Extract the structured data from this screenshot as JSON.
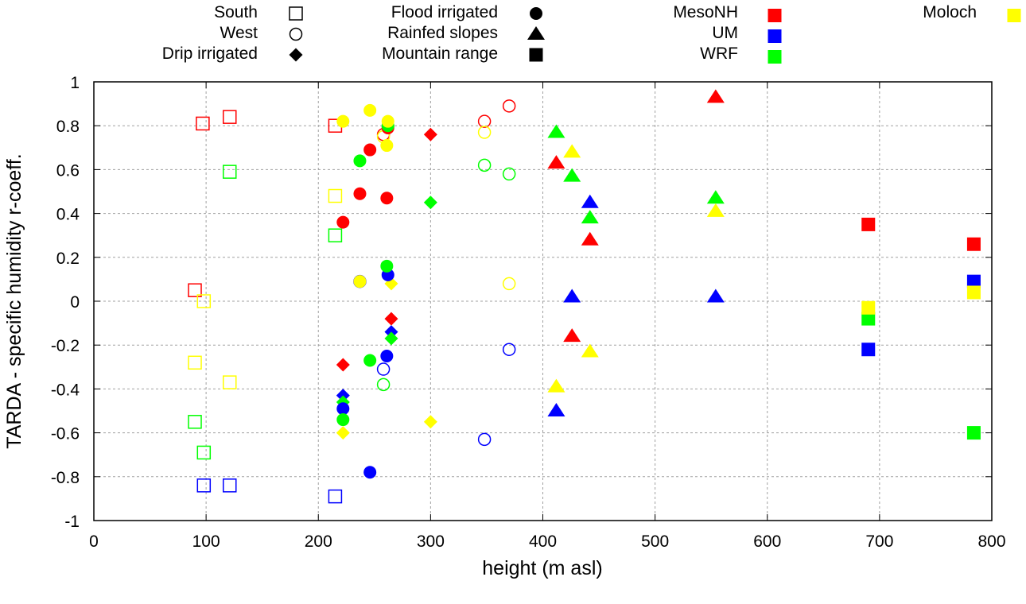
{
  "chart_data": {
    "type": "scatter",
    "title": "",
    "xlabel": "height (m asl)",
    "ylabel": "TARDA - specific humidity r-coeff.",
    "xlim": [
      0,
      800
    ],
    "ylim": [
      -1,
      1
    ],
    "xticks": [
      0,
      100,
      200,
      300,
      400,
      500,
      600,
      700,
      800
    ],
    "xtick_labels": [
      "0",
      "100",
      "200",
      "300",
      "400",
      "500",
      "600",
      "700",
      "800"
    ],
    "yticks": [
      -1,
      -0.8,
      -0.6,
      -0.4,
      -0.2,
      0,
      0.2,
      0.4,
      0.6,
      0.8,
      1
    ],
    "ytick_labels": [
      "-1",
      "-0.8",
      "-0.6",
      "-0.4",
      "-0.2",
      "0",
      "0.2",
      "0.4",
      "0.6",
      "0.8",
      "1"
    ],
    "grid": true,
    "legend_placement": "top-outside",
    "legend": {
      "regions": [
        {
          "label": "South",
          "marker": "open-square"
        },
        {
          "label": "West",
          "marker": "open-circle"
        },
        {
          "label": "Drip irrigated",
          "marker": "filled-diamond"
        },
        {
          "label": "Flood irrigated",
          "marker": "filled-circle"
        },
        {
          "label": "Rainfed slopes",
          "marker": "filled-triangle"
        },
        {
          "label": "Mountain range",
          "marker": "filled-square"
        }
      ],
      "models": [
        {
          "label": "MesoNH",
          "color": "#ff0000"
        },
        {
          "label": "UM",
          "color": "#0000ff"
        },
        {
          "label": "WRF",
          "color": "#00ff00"
        },
        {
          "label": "Moloch",
          "color": "#ffff00"
        }
      ]
    },
    "series": [
      {
        "region": "South",
        "model": "MesoNH",
        "marker": "open-square",
        "points": [
          [
            97,
            0.81
          ],
          [
            121,
            0.84
          ],
          [
            215,
            0.8
          ],
          [
            90,
            0.05
          ]
        ]
      },
      {
        "region": "South",
        "model": "UM",
        "marker": "open-square",
        "points": [
          [
            98,
            -0.84
          ],
          [
            121,
            -0.84
          ],
          [
            215,
            -0.89
          ]
        ]
      },
      {
        "region": "South",
        "model": "WRF",
        "marker": "open-square",
        "points": [
          [
            121,
            0.59
          ],
          [
            215,
            0.3
          ],
          [
            90,
            -0.55
          ],
          [
            98,
            -0.69
          ]
        ]
      },
      {
        "region": "South",
        "model": "Moloch",
        "marker": "open-square",
        "points": [
          [
            215,
            0.48
          ],
          [
            98,
            0.0
          ],
          [
            90,
            -0.28
          ],
          [
            121,
            -0.37
          ]
        ]
      },
      {
        "region": "West",
        "model": "MesoNH",
        "marker": "open-circle",
        "points": [
          [
            370,
            0.89
          ],
          [
            348,
            0.82
          ],
          [
            258,
            0.76
          ]
        ]
      },
      {
        "region": "West",
        "model": "UM",
        "marker": "open-circle",
        "points": [
          [
            237,
            0.09
          ],
          [
            258,
            -0.31
          ],
          [
            370,
            -0.22
          ],
          [
            348,
            -0.63
          ]
        ]
      },
      {
        "region": "West",
        "model": "WRF",
        "marker": "open-circle",
        "points": [
          [
            348,
            0.62
          ],
          [
            370,
            0.58
          ],
          [
            258,
            -0.38
          ]
        ]
      },
      {
        "region": "West",
        "model": "Moloch",
        "marker": "open-circle",
        "points": [
          [
            348,
            0.77
          ],
          [
            258,
            0.75
          ],
          [
            370,
            0.08
          ]
        ]
      },
      {
        "region": "Drip irrigated",
        "model": "MesoNH",
        "marker": "filled-diamond",
        "points": [
          [
            300,
            0.76
          ],
          [
            265,
            -0.08
          ],
          [
            222,
            -0.29
          ]
        ]
      },
      {
        "region": "Drip irrigated",
        "model": "UM",
        "marker": "filled-diamond",
        "points": [
          [
            265,
            -0.14
          ],
          [
            222,
            -0.43
          ]
        ]
      },
      {
        "region": "Drip irrigated",
        "model": "WRF",
        "marker": "filled-diamond",
        "points": [
          [
            300,
            0.45
          ],
          [
            265,
            -0.17
          ],
          [
            222,
            -0.46
          ]
        ]
      },
      {
        "region": "Drip irrigated",
        "model": "Moloch",
        "marker": "filled-diamond",
        "points": [
          [
            265,
            0.08
          ],
          [
            300,
            -0.55
          ],
          [
            222,
            -0.6
          ]
        ]
      },
      {
        "region": "Flood irrigated",
        "model": "MesoNH",
        "marker": "filled-circle",
        "points": [
          [
            262,
            0.79
          ],
          [
            246,
            0.69
          ],
          [
            237,
            0.49
          ],
          [
            261,
            0.47
          ],
          [
            222,
            0.36
          ]
        ]
      },
      {
        "region": "Flood irrigated",
        "model": "UM",
        "marker": "filled-circle",
        "points": [
          [
            262,
            0.12
          ],
          [
            261,
            -0.25
          ],
          [
            222,
            -0.49
          ],
          [
            246,
            -0.78
          ]
        ]
      },
      {
        "region": "Flood irrigated",
        "model": "WRF",
        "marker": "filled-circle",
        "points": [
          [
            262,
            0.8
          ],
          [
            237,
            0.64
          ],
          [
            261,
            0.16
          ],
          [
            246,
            -0.27
          ],
          [
            222,
            -0.54
          ]
        ]
      },
      {
        "region": "Flood irrigated",
        "model": "Moloch",
        "marker": "filled-circle",
        "points": [
          [
            222,
            0.82
          ],
          [
            246,
            0.87
          ],
          [
            262,
            0.82
          ],
          [
            261,
            0.71
          ],
          [
            237,
            0.09
          ]
        ]
      },
      {
        "region": "Rainfed slopes",
        "model": "MesoNH",
        "marker": "filled-triangle",
        "points": [
          [
            554,
            0.93
          ],
          [
            412,
            0.63
          ],
          [
            442,
            0.28
          ],
          [
            426,
            -0.16
          ]
        ]
      },
      {
        "region": "Rainfed slopes",
        "model": "UM",
        "marker": "filled-triangle",
        "points": [
          [
            442,
            0.45
          ],
          [
            426,
            0.02
          ],
          [
            554,
            0.02
          ],
          [
            412,
            -0.5
          ]
        ]
      },
      {
        "region": "Rainfed slopes",
        "model": "WRF",
        "marker": "filled-triangle",
        "points": [
          [
            412,
            0.77
          ],
          [
            426,
            0.57
          ],
          [
            442,
            0.38
          ],
          [
            554,
            0.47
          ]
        ]
      },
      {
        "region": "Rainfed slopes",
        "model": "Moloch",
        "marker": "filled-triangle",
        "points": [
          [
            426,
            0.68
          ],
          [
            554,
            0.41
          ],
          [
            442,
            -0.23
          ],
          [
            412,
            -0.39
          ]
        ]
      },
      {
        "region": "Mountain range",
        "model": "MesoNH",
        "marker": "filled-square",
        "points": [
          [
            690,
            0.35
          ],
          [
            784,
            0.26
          ]
        ]
      },
      {
        "region": "Mountain range",
        "model": "UM",
        "marker": "filled-square",
        "points": [
          [
            784,
            0.09
          ],
          [
            690,
            -0.22
          ]
        ]
      },
      {
        "region": "Mountain range",
        "model": "WRF",
        "marker": "filled-square",
        "points": [
          [
            690,
            -0.08
          ],
          [
            784,
            -0.6
          ]
        ]
      },
      {
        "region": "Mountain range",
        "model": "Moloch",
        "marker": "filled-square",
        "points": [
          [
            690,
            -0.03
          ],
          [
            784,
            0.04
          ]
        ]
      }
    ]
  }
}
